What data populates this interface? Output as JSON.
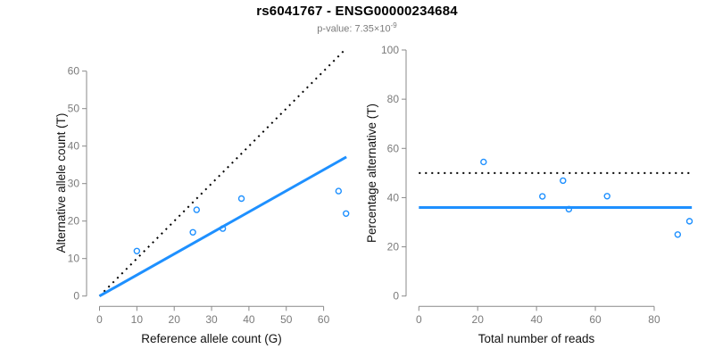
{
  "header": {
    "title": "rs6041767 - ENSG00000234684",
    "subtitle_base": "p-value: 7.35×10",
    "subtitle_exponent": "-9"
  },
  "colors": {
    "accent_blue": "#1e90ff",
    "identity_black": "#000000",
    "axis_gray": "#898989",
    "tick_label_gray": "#7b7b7b"
  },
  "chart_data": [
    {
      "type": "scatter",
      "name": "allele-counts",
      "xlabel": "Reference allele count (G)",
      "ylabel": "Alternative allele count (T)",
      "x_ticks": [
        0,
        10,
        20,
        30,
        40,
        50,
        60
      ],
      "y_ticks": [
        0,
        10,
        20,
        30,
        40,
        50,
        60
      ],
      "xlim": [
        0,
        66
      ],
      "ylim": [
        0,
        66
      ],
      "grid": false,
      "points": {
        "x": [
          10,
          25,
          26,
          33,
          38,
          64,
          66
        ],
        "y": [
          12,
          17,
          23,
          18,
          26,
          28,
          22
        ]
      },
      "lines": [
        {
          "name": "identity-line",
          "x1": 0,
          "y1": 0,
          "x2": 66,
          "y2": 66,
          "style": "dotted",
          "color": "#000000",
          "width": 2
        },
        {
          "name": "fit-line",
          "x1": 0,
          "y1": 0,
          "x2": 66.1,
          "y2": 37.1,
          "style": "solid",
          "color": "#1e90ff",
          "width": 3
        }
      ]
    },
    {
      "type": "scatter",
      "name": "percentage-alternative",
      "xlabel": "Total number of reads",
      "ylabel": "Percentage alternative (T)",
      "x_ticks": [
        0,
        20,
        40,
        60,
        80
      ],
      "y_ticks": [
        0,
        20,
        40,
        60,
        80,
        100
      ],
      "xlim": [
        0,
        93
      ],
      "ylim": [
        0,
        100
      ],
      "grid": false,
      "points": {
        "x": [
          22,
          42,
          49,
          51,
          64,
          88,
          92
        ],
        "y": [
          54.5,
          40.5,
          46.9,
          35.3,
          40.6,
          25.0,
          30.4
        ]
      },
      "lines": [
        {
          "name": "fifty-percent-line",
          "x1": 0,
          "y1": 50,
          "x2": 92.5,
          "y2": 50,
          "style": "dotted",
          "color": "#000000",
          "width": 2
        },
        {
          "name": "mean-percentage-line",
          "x1": 0,
          "y1": 36,
          "x2": 92.8,
          "y2": 36,
          "style": "solid",
          "color": "#1e90ff",
          "width": 3
        }
      ]
    }
  ]
}
